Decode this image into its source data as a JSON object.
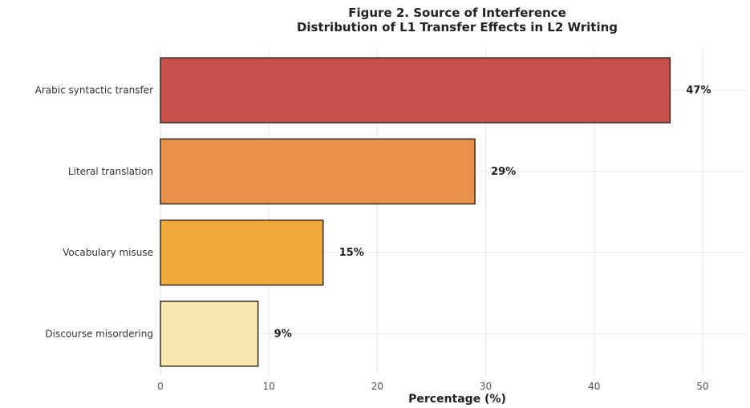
{
  "chart_data": {
    "type": "bar",
    "orientation": "horizontal",
    "title": [
      "Figure 2. Source of Interference",
      "Distribution of L1 Transfer Effects in L2 Writing"
    ],
    "categories": [
      "Arabic syntactic transfer",
      "Literal translation",
      "Vocabulary misuse",
      "Discourse misordering"
    ],
    "values": [
      47,
      29,
      15,
      9
    ],
    "value_labels": [
      "47%",
      "29%",
      "15%",
      "9%"
    ],
    "colors": [
      "#c9504a",
      "#e8914a",
      "#f0a838",
      "#f8e8b0"
    ],
    "xlabel": "Percentage (%)",
    "ylabel": "",
    "xlim": [
      0,
      54
    ],
    "xticks": [
      0,
      10,
      20,
      30,
      40,
      50
    ],
    "grid": true
  }
}
